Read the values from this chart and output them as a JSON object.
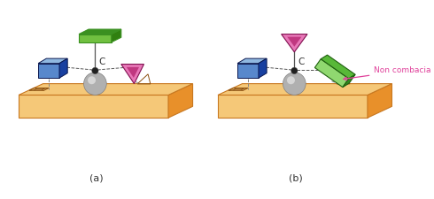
{
  "bg_color": "#ffffff",
  "label_a": "(a)",
  "label_b": "(b)",
  "non_combacia": "Non combacia",
  "non_combacia_color": "#e0409a",
  "label_C": "C",
  "platform_top_color": "#f5c878",
  "platform_front_color": "#f5c878",
  "platform_side_color": "#e8902a",
  "platform_edge_color": "#c87820",
  "green_rect_top": "#3a9020",
  "green_rect_front": "#70c040",
  "green_rect_side": "#308010",
  "blue_box_front": "#5888cc",
  "blue_box_top": "#90b8e0",
  "blue_box_side": "#1840a0",
  "magenta_tri_main": "#c03880",
  "magenta_tri_light": "#e878b8",
  "green_bar_main": "#58b838",
  "green_bar_light": "#90d870",
  "green_bar_dark": "#308820",
  "sphere_base": "#b0b0b0",
  "sphere_hi": "#e0e0e0",
  "black_sphere": "#202020",
  "dashed_color": "#888888",
  "symbol_color": "#8B5010",
  "text_color": "#333333"
}
